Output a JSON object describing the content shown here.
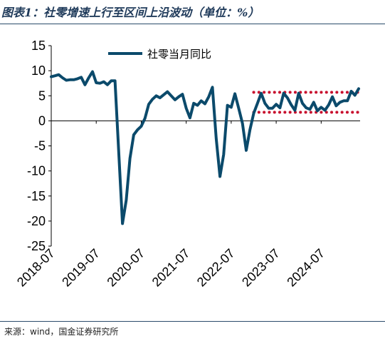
{
  "title": "图表1：社零增速上行至区间上沿波动（单位：%）",
  "source": "来源：wind，国金证券研究所",
  "colors": {
    "series": "#0b4a6b",
    "band": "#c8102e",
    "text": "#000000",
    "rule": "#2b4c6b"
  },
  "chart_data": {
    "type": "line",
    "title": "图表1：社零增速上行至区间上沿波动（单位：%）",
    "xlabel": "",
    "ylabel": "",
    "ylim": [
      -25,
      15
    ],
    "yticks": [
      "15",
      "10",
      "5",
      "0",
      "-5",
      "-10",
      "-15",
      "-20",
      "-25"
    ],
    "xticks": [
      "2018-07",
      "2019-07",
      "2020-07",
      "2021-07",
      "2022-07",
      "2023-07",
      "2024-07"
    ],
    "legend_position": "top",
    "grid": false,
    "band": {
      "upper": 5.7,
      "lower": 1.7,
      "style": "dotted"
    },
    "series": [
      {
        "name": "社零当月同比",
        "x": [
          "2018-07",
          "2018-08",
          "2018-09",
          "2018-10",
          "2018-11",
          "2018-12",
          "2019-01",
          "2019-02",
          "2019-03",
          "2019-04",
          "2019-05",
          "2019-06",
          "2019-07",
          "2019-08",
          "2019-09",
          "2019-10",
          "2019-11",
          "2019-12",
          "2020-01",
          "2020-02",
          "2020-03",
          "2020-04",
          "2020-05",
          "2020-06",
          "2020-07",
          "2020-08",
          "2020-09",
          "2020-10",
          "2020-11",
          "2020-12",
          "2021-01",
          "2021-02",
          "2021-03",
          "2021-04",
          "2021-05",
          "2021-06",
          "2021-07",
          "2021-08",
          "2021-09",
          "2021-10",
          "2021-11",
          "2021-12",
          "2022-01",
          "2022-02",
          "2022-03",
          "2022-04",
          "2022-05",
          "2022-06",
          "2022-07",
          "2022-08",
          "2022-09",
          "2022-10",
          "2022-11",
          "2022-12",
          "2023-01",
          "2023-02",
          "2023-03",
          "2023-04",
          "2023-05",
          "2023-06",
          "2023-07",
          "2023-08",
          "2023-09",
          "2023-10",
          "2023-11",
          "2023-12",
          "2024-01",
          "2024-02",
          "2024-03",
          "2024-04",
          "2024-05",
          "2024-06",
          "2024-07",
          "2024-08",
          "2024-09",
          "2024-10",
          "2024-11",
          "2024-12",
          "2025-01",
          "2025-02",
          "2025-03",
          "2025-04",
          "2025-05"
        ],
        "values": [
          8.8,
          9.0,
          9.2,
          8.6,
          8.1,
          8.2,
          8.2,
          8.4,
          8.7,
          7.2,
          8.6,
          9.8,
          7.6,
          7.5,
          7.8,
          7.2,
          8.0,
          8.0,
          null,
          -20.5,
          -15.8,
          -7.5,
          -2.8,
          -1.8,
          -1.1,
          0.5,
          3.3,
          4.3,
          5.0,
          4.6,
          null,
          5.8,
          5.0,
          4.2,
          4.8,
          5.3,
          2.5,
          0.6,
          3.5,
          3.1,
          4.0,
          3.4,
          4.8,
          6.7,
          -3.5,
          -11.1,
          -6.7,
          3.1,
          2.7,
          5.4,
          2.5,
          -0.5,
          -5.9,
          -1.8,
          1.5,
          3.5,
          5.5,
          3.5,
          2.5,
          2.5,
          3.3,
          2.6,
          5.5,
          4.6,
          3.2,
          2.1,
          5.5,
          3.5,
          2.6,
          2.3,
          3.7,
          2.0,
          2.7,
          2.1,
          3.2,
          4.8,
          3.0,
          3.7,
          4.0,
          4.0,
          5.9,
          5.1,
          6.4
        ]
      }
    ]
  }
}
